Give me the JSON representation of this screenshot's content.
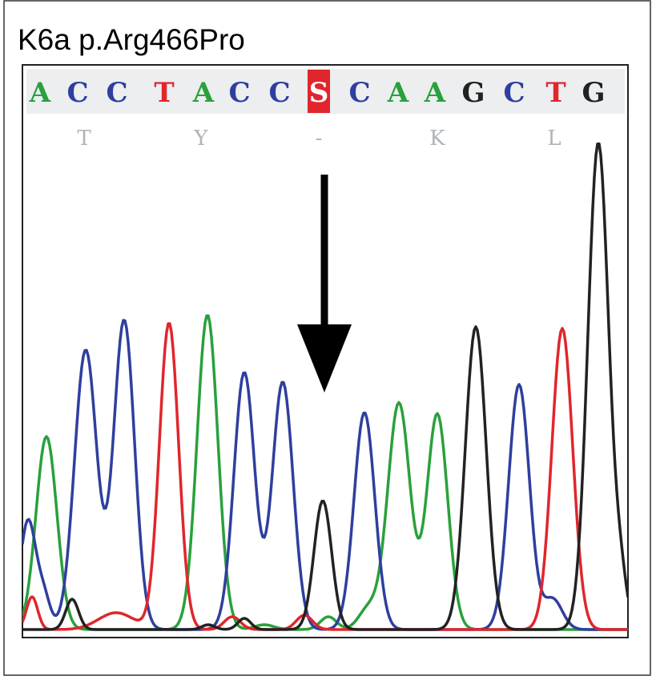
{
  "header": {
    "title": "K6a p.Arg466Pro"
  },
  "sequence": [
    {
      "base": "A",
      "color": "#2aa03c"
    },
    {
      "base": "C",
      "color": "#2f3f9e"
    },
    {
      "base": "C",
      "color": "#2f3f9e"
    },
    {
      "base": "T",
      "color": "#e0262c"
    },
    {
      "base": "A",
      "color": "#2aa03c"
    },
    {
      "base": "C",
      "color": "#2f3f9e"
    },
    {
      "base": "C",
      "color": "#2f3f9e"
    },
    {
      "base": "S",
      "color": "#ffffff",
      "highlight": "#e0262c"
    },
    {
      "base": "C",
      "color": "#2f3f9e"
    },
    {
      "base": "A",
      "color": "#2aa03c"
    },
    {
      "base": "A",
      "color": "#2aa03c"
    },
    {
      "base": "G",
      "color": "#222222"
    },
    {
      "base": "C",
      "color": "#2f3f9e"
    },
    {
      "base": "T",
      "color": "#e0262c"
    },
    {
      "base": "G",
      "color": "#222222"
    }
  ],
  "amino_acids": [
    "T",
    "Y",
    "-",
    "K",
    "L"
  ]
}
